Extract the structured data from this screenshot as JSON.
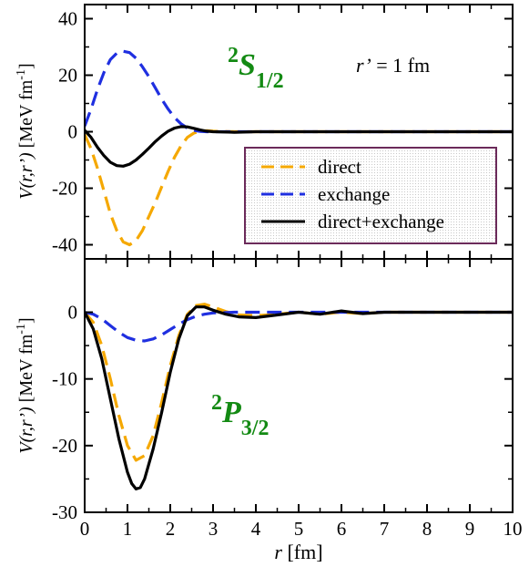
{
  "chart_data": [
    {
      "type": "line",
      "state": {
        "sup": "2",
        "main": "S",
        "sub": "1/2"
      },
      "annotation": {
        "var": "r’",
        "rest": " = 1 fm"
      },
      "ylabel": {
        "var": "V(r,r’)",
        "units": " [MeV fm",
        "exp": "-1",
        "close": "]"
      },
      "xlim": [
        0,
        10
      ],
      "ylim": [
        -45,
        45
      ],
      "y_ticks": [
        40,
        20,
        0,
        -20,
        -40
      ],
      "x_ticks": [
        0,
        1,
        2,
        3,
        4,
        5,
        6,
        7,
        8,
        9,
        10
      ],
      "legend": {
        "placement": "center-right",
        "entries": [
          "direct",
          "exchange",
          "direct+exchange"
        ]
      },
      "series": [
        {
          "name": "direct",
          "color": "#f5a800",
          "dash": "dashed",
          "x": [
            0,
            0.15,
            0.3,
            0.45,
            0.6,
            0.75,
            0.9,
            1.05,
            1.2,
            1.35,
            1.5,
            1.65,
            1.8,
            1.95,
            2.1,
            2.25,
            2.4,
            2.55,
            2.7,
            2.85,
            3.0,
            3.5,
            4,
            5,
            6,
            7,
            8,
            9,
            10
          ],
          "y": [
            -1,
            -6,
            -13,
            -21,
            -29,
            -35,
            -39,
            -40,
            -38.5,
            -35,
            -30,
            -25,
            -19.5,
            -14,
            -9,
            -5,
            -2,
            -0.5,
            0.2,
            0.4,
            0.2,
            0,
            0,
            0,
            0,
            0,
            0,
            0,
            0
          ]
        },
        {
          "name": "exchange",
          "color": "#1f2fe0",
          "dash": "dashed",
          "x": [
            0,
            0.15,
            0.3,
            0.45,
            0.6,
            0.75,
            0.9,
            1.05,
            1.2,
            1.35,
            1.5,
            1.65,
            1.8,
            1.95,
            2.1,
            2.25,
            2.4,
            2.55,
            2.7,
            2.85,
            3.0,
            3.5,
            4,
            5,
            6,
            7,
            8,
            9,
            10
          ],
          "y": [
            2,
            8,
            15,
            21,
            25.5,
            27.8,
            28.5,
            28,
            26,
            23,
            19.5,
            15.5,
            11.5,
            8,
            5,
            2.8,
            1.3,
            0.5,
            0.1,
            0,
            0,
            0,
            0,
            0,
            0,
            0,
            0,
            0,
            0
          ]
        },
        {
          "name": "direct+exchange",
          "color": "#000000",
          "dash": "solid",
          "x": [
            0,
            0.15,
            0.3,
            0.45,
            0.6,
            0.75,
            0.9,
            1.05,
            1.2,
            1.35,
            1.5,
            1.65,
            1.8,
            1.95,
            2.1,
            2.25,
            2.4,
            2.55,
            2.7,
            2.85,
            3.0,
            3.5,
            4,
            5,
            6,
            7,
            8,
            9,
            10
          ],
          "y": [
            0.5,
            -2,
            -5.5,
            -8.5,
            -10.8,
            -12,
            -12.2,
            -11.5,
            -10,
            -8,
            -5.8,
            -3.5,
            -1.5,
            0.2,
            1.3,
            1.8,
            1.7,
            1.2,
            0.6,
            0.2,
            0,
            -0.2,
            0,
            0,
            0,
            0,
            0,
            0,
            0
          ]
        }
      ]
    },
    {
      "type": "line",
      "state": {
        "sup": "2",
        "main": "P",
        "sub": "3/2"
      },
      "ylabel": {
        "var": "V(r,r’)",
        "units": " [MeV fm",
        "exp": "-1",
        "close": "]"
      },
      "xlabel": {
        "var": "r",
        "units": " [fm]"
      },
      "xlim": [
        0,
        10
      ],
      "ylim": [
        -30,
        8
      ],
      "y_ticks": [
        0,
        -10,
        -20,
        -30
      ],
      "x_ticks": [
        0,
        1,
        2,
        3,
        4,
        5,
        6,
        7,
        8,
        9,
        10
      ],
      "series": [
        {
          "name": "direct",
          "color": "#f5a800",
          "dash": "dashed",
          "x": [
            0,
            0.2,
            0.4,
            0.6,
            0.8,
            1.0,
            1.2,
            1.4,
            1.6,
            1.8,
            2.0,
            2.2,
            2.4,
            2.6,
            2.8,
            3.0,
            3.3,
            3.6,
            4.0,
            4.5,
            5,
            5.5,
            6,
            6.5,
            7,
            8,
            9,
            10
          ],
          "y": [
            0,
            -1.5,
            -5,
            -10,
            -15.5,
            -20,
            -22.2,
            -21.5,
            -18.5,
            -13.5,
            -8,
            -3.5,
            -0.3,
            1,
            1.2,
            0.8,
            0.1,
            -0.4,
            -0.5,
            -0.3,
            0,
            -0.3,
            0,
            -0.2,
            0,
            0,
            0,
            0
          ]
        },
        {
          "name": "exchange",
          "color": "#1f2fe0",
          "dash": "dashed",
          "x": [
            0,
            0.2,
            0.4,
            0.6,
            0.8,
            1.0,
            1.2,
            1.4,
            1.6,
            1.8,
            2.0,
            2.2,
            2.4,
            2.6,
            2.8,
            3.0,
            3.5,
            4,
            5,
            6,
            7,
            8,
            9,
            10
          ],
          "y": [
            0,
            -0.3,
            -1,
            -2,
            -3,
            -3.8,
            -4.2,
            -4.3,
            -4,
            -3.4,
            -2.6,
            -1.8,
            -1.1,
            -0.6,
            -0.3,
            -0.1,
            0,
            0,
            0,
            0,
            0,
            0,
            0,
            0
          ]
        },
        {
          "name": "direct+exchange",
          "color": "#000000",
          "dash": "solid",
          "x": [
            0,
            0.2,
            0.4,
            0.6,
            0.8,
            1.0,
            1.1,
            1.2,
            1.3,
            1.4,
            1.6,
            1.8,
            2.0,
            2.2,
            2.4,
            2.6,
            2.8,
            3.0,
            3.3,
            3.6,
            4.0,
            4.5,
            5,
            5.5,
            6,
            6.5,
            7,
            8,
            9,
            10
          ],
          "y": [
            0,
            -2.5,
            -7,
            -13,
            -19,
            -24,
            -25.7,
            -26.5,
            -26.3,
            -25,
            -20.5,
            -15,
            -9,
            -4,
            -0.5,
            0.8,
            0.8,
            0.3,
            -0.3,
            -0.7,
            -0.8,
            -0.4,
            0,
            -0.3,
            0.2,
            -0.2,
            0,
            0,
            0,
            0
          ]
        }
      ]
    }
  ]
}
